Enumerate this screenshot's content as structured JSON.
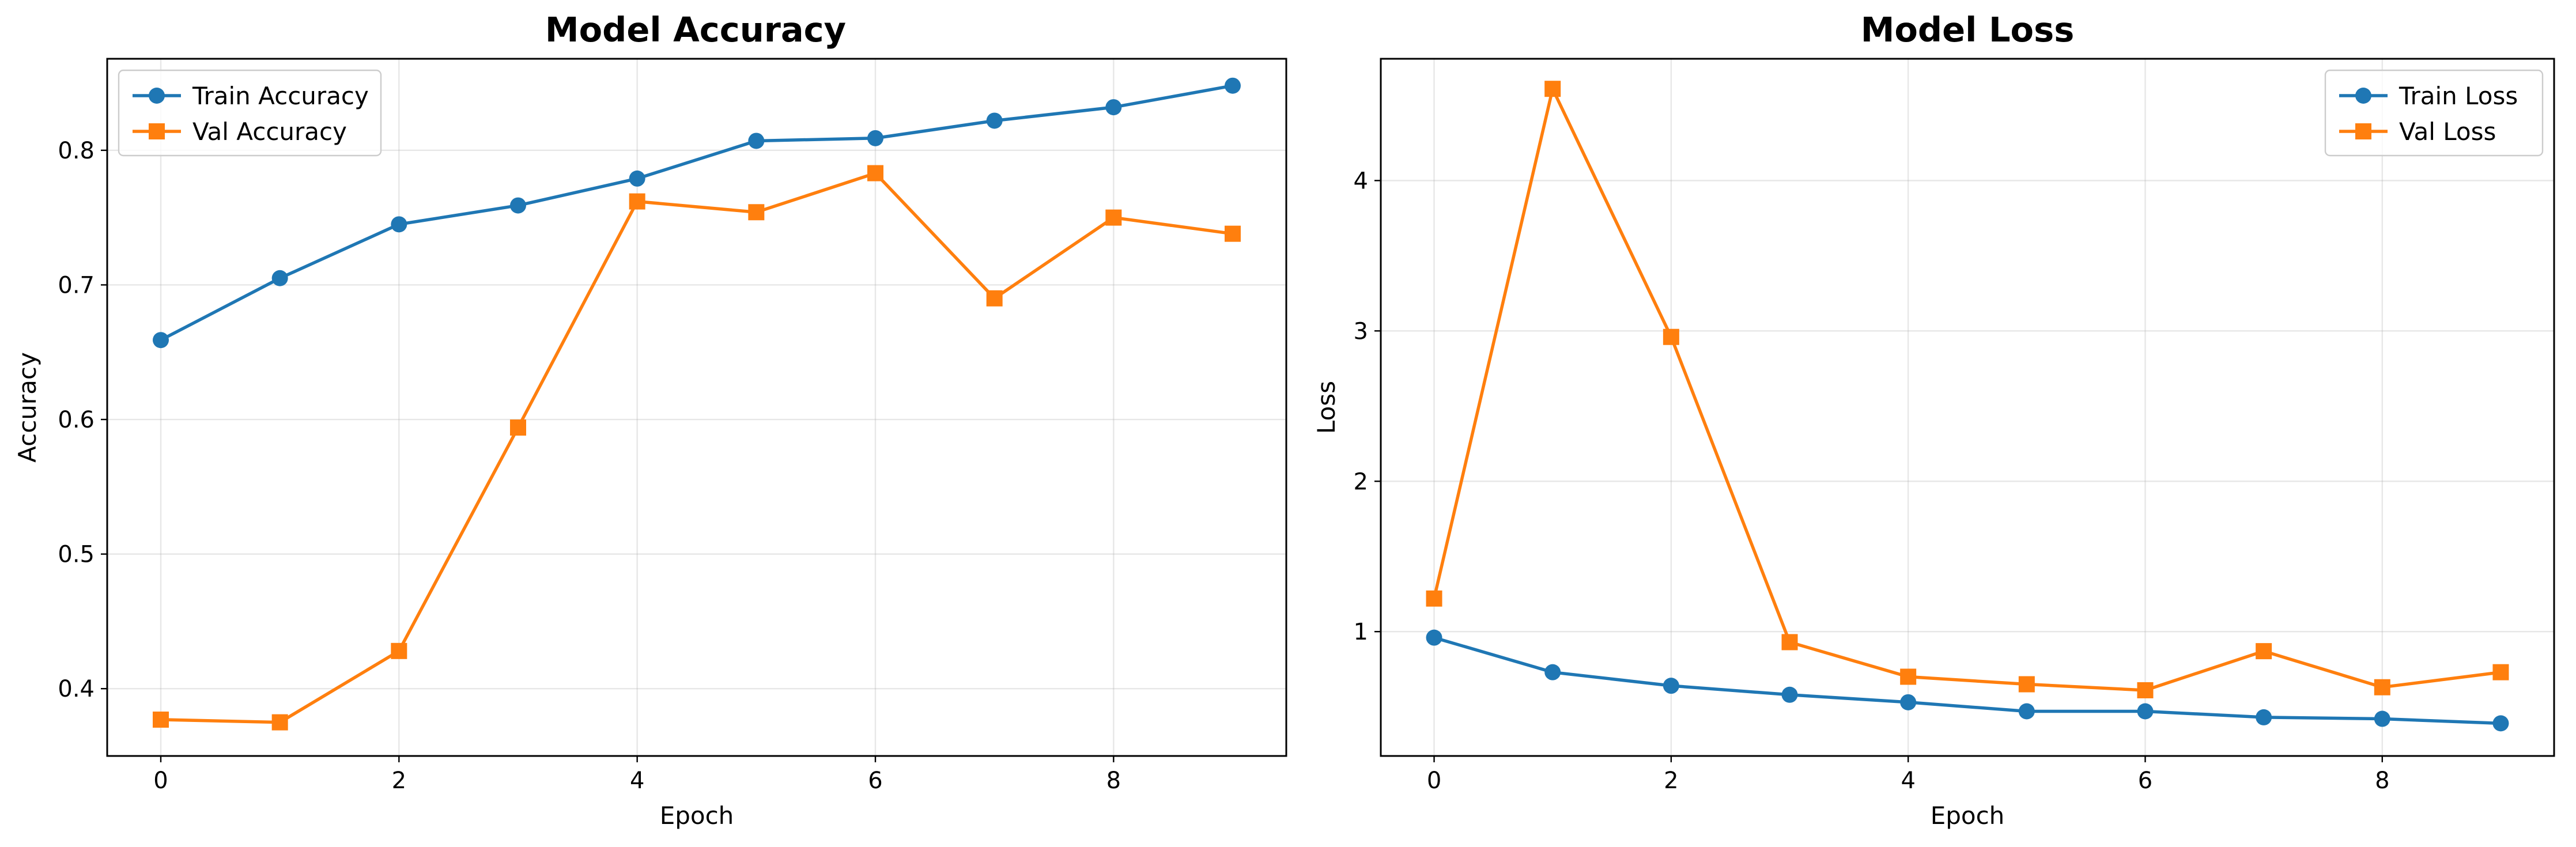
{
  "chart_data": [
    {
      "type": "line",
      "title": "Model Accuracy",
      "xlabel": "Epoch",
      "ylabel": "Accuracy",
      "xlim": [
        -0.45,
        9.45
      ],
      "ylim": [
        0.35,
        0.868
      ],
      "xticks": [
        0,
        2,
        4,
        6,
        8
      ],
      "xtick_labels": [
        "0",
        "2",
        "4",
        "6",
        "8"
      ],
      "yticks": [
        0.4,
        0.5,
        0.6,
        0.7,
        0.8
      ],
      "ytick_labels": [
        "0.4",
        "0.5",
        "0.6",
        "0.7",
        "0.8"
      ],
      "grid": true,
      "legend_position": "upper-left",
      "x": [
        0,
        1,
        2,
        3,
        4,
        5,
        6,
        7,
        8,
        9
      ],
      "series": [
        {
          "name": "Train Accuracy",
          "color": "#1f77b4",
          "marker": "circle",
          "values": [
            0.659,
            0.705,
            0.745,
            0.759,
            0.779,
            0.807,
            0.809,
            0.822,
            0.832,
            0.848
          ]
        },
        {
          "name": "Val Accuracy",
          "color": "#ff7f0e",
          "marker": "square",
          "values": [
            0.377,
            0.375,
            0.428,
            0.594,
            0.762,
            0.754,
            0.783,
            0.69,
            0.75,
            0.738
          ]
        }
      ]
    },
    {
      "type": "line",
      "title": "Model Loss",
      "xlabel": "Epoch",
      "ylabel": "Loss",
      "xlim": [
        -0.45,
        9.45
      ],
      "ylim": [
        0.173,
        4.81
      ],
      "xticks": [
        0,
        2,
        4,
        6,
        8
      ],
      "xtick_labels": [
        "0",
        "2",
        "4",
        "6",
        "8"
      ],
      "yticks": [
        1,
        2,
        3,
        4
      ],
      "ytick_labels": [
        "1",
        "2",
        "3",
        "4"
      ],
      "grid": true,
      "legend_position": "upper-right",
      "x": [
        0,
        1,
        2,
        3,
        4,
        5,
        6,
        7,
        8,
        9
      ],
      "series": [
        {
          "name": "Train Loss",
          "color": "#1f77b4",
          "marker": "circle",
          "values": [
            0.96,
            0.73,
            0.64,
            0.58,
            0.53,
            0.47,
            0.47,
            0.43,
            0.42,
            0.39
          ]
        },
        {
          "name": "Val Loss",
          "color": "#ff7f0e",
          "marker": "square",
          "values": [
            1.22,
            4.61,
            2.96,
            0.93,
            0.7,
            0.65,
            0.61,
            0.87,
            0.63,
            0.73
          ]
        }
      ]
    }
  ]
}
